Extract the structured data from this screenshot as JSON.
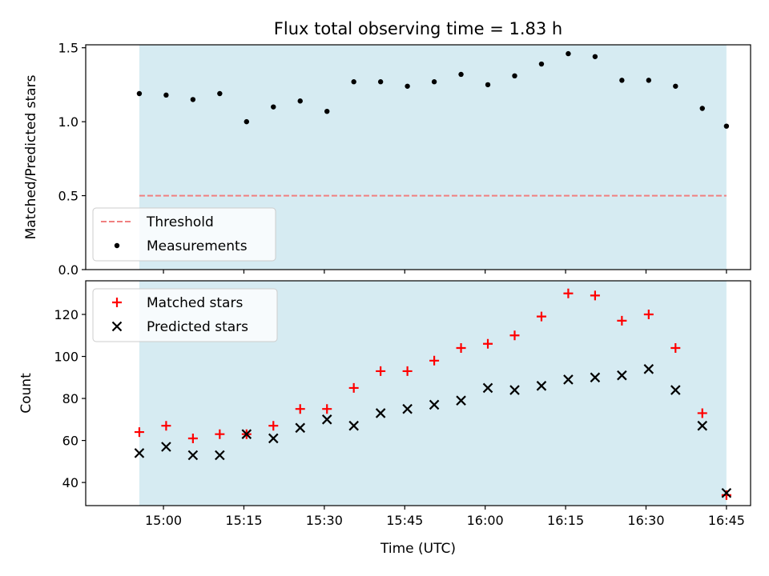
{
  "title": "Flux total observing time = 1.83 h",
  "xlabel": "Time (UTC)",
  "x_tick_labels": [
    "15:00",
    "15:15",
    "15:30",
    "15:45",
    "16:00",
    "16:15",
    "16:30",
    "16:45"
  ],
  "colors": {
    "span": "#add8e6",
    "threshold": "#f08080",
    "measurements": "#000000",
    "matched": "#ff0000",
    "predicted": "#000000"
  },
  "chart_data": [
    {
      "type": "scatter",
      "ylabel": "Matched/Predicted stars",
      "ylim": [
        0,
        1.52
      ],
      "y_ticks": [
        0,
        0.5,
        1.0,
        1.5
      ],
      "y_tick_labels": [
        "0.0",
        "0.5",
        "1.0",
        "1.5"
      ],
      "x_range": [
        "14:45:30",
        "16:49:30"
      ],
      "shaded_interval": [
        "14:55:30",
        "16:45:00"
      ],
      "legend_position": "lower-left",
      "threshold": {
        "name": "Threshold",
        "value": 0.5,
        "style": "dashed"
      },
      "series": [
        {
          "name": "Measurements",
          "marker": "dot",
          "x": [
            "14:55:30",
            "15:00:30",
            "15:05:30",
            "15:10:30",
            "15:15:30",
            "15:20:30",
            "15:25:30",
            "15:30:30",
            "15:35:30",
            "15:40:30",
            "15:45:30",
            "15:50:30",
            "15:55:30",
            "16:00:30",
            "16:05:30",
            "16:10:30",
            "16:15:30",
            "16:20:30",
            "16:25:30",
            "16:30:30",
            "16:35:30",
            "16:40:30",
            "16:45:00"
          ],
          "y": [
            1.19,
            1.18,
            1.15,
            1.19,
            1.0,
            1.1,
            1.14,
            1.07,
            1.27,
            1.27,
            1.24,
            1.27,
            1.32,
            1.25,
            1.31,
            1.39,
            1.46,
            1.44,
            1.28,
            1.28,
            1.24,
            1.09,
            0.97
          ]
        }
      ]
    },
    {
      "type": "scatter",
      "ylabel": "Count",
      "ylim": [
        29,
        136
      ],
      "y_ticks": [
        40,
        60,
        80,
        100,
        120
      ],
      "y_tick_labels": [
        "40",
        "60",
        "80",
        "100",
        "120"
      ],
      "x_range": [
        "14:45:30",
        "16:49:30"
      ],
      "shaded_interval": [
        "14:55:30",
        "16:45:00"
      ],
      "legend_position": "top-left",
      "series": [
        {
          "name": "Matched stars",
          "marker": "plus",
          "x": [
            "14:55:30",
            "15:00:30",
            "15:05:30",
            "15:10:30",
            "15:15:30",
            "15:20:30",
            "15:25:30",
            "15:30:30",
            "15:35:30",
            "15:40:30",
            "15:45:30",
            "15:50:30",
            "15:55:30",
            "16:00:30",
            "16:05:30",
            "16:10:30",
            "16:15:30",
            "16:20:30",
            "16:25:30",
            "16:30:30",
            "16:35:30",
            "16:40:30",
            "16:45:00"
          ],
          "y": [
            64,
            67,
            61,
            63,
            63,
            67,
            75,
            75,
            85,
            93,
            93,
            98,
            104,
            106,
            110,
            119,
            130,
            129,
            117,
            120,
            104,
            73,
            34
          ]
        },
        {
          "name": "Predicted stars",
          "marker": "x",
          "x": [
            "14:55:30",
            "15:00:30",
            "15:05:30",
            "15:10:30",
            "15:15:30",
            "15:20:30",
            "15:25:30",
            "15:30:30",
            "15:35:30",
            "15:40:30",
            "15:45:30",
            "15:50:30",
            "15:55:30",
            "16:00:30",
            "16:05:30",
            "16:10:30",
            "16:15:30",
            "16:20:30",
            "16:25:30",
            "16:30:30",
            "16:35:30",
            "16:40:30",
            "16:45:00"
          ],
          "y": [
            54,
            57,
            53,
            53,
            63,
            61,
            66,
            70,
            67,
            73,
            75,
            77,
            79,
            85,
            84,
            86,
            89,
            90,
            91,
            94,
            84,
            67,
            35
          ]
        }
      ]
    }
  ]
}
